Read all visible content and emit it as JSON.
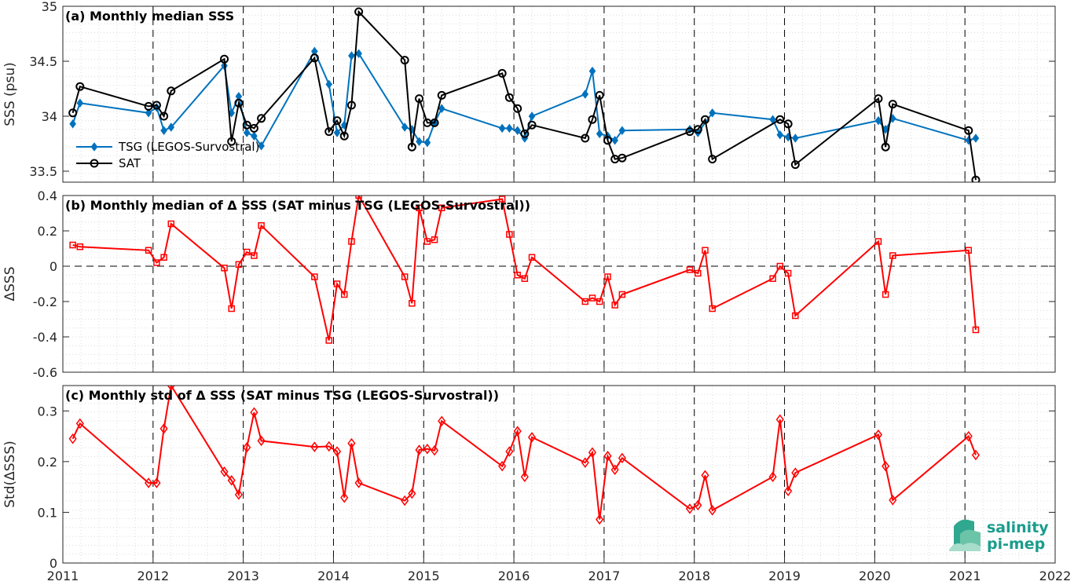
{
  "chart_data": [
    {
      "type": "line",
      "title": "(a) Monthly median SSS",
      "ylabel": "SSS (psu)",
      "xlim": [
        2011,
        2022
      ],
      "ylim": [
        33.4,
        35
      ],
      "yticks": [
        "33.5",
        "34",
        "34.5",
        "35"
      ],
      "yticks_values": [
        33.5,
        34,
        34.5,
        35
      ],
      "legend_position": "middle-left",
      "grid": "dotted minor",
      "series": [
        {
          "name": "TSG (LEGOS-Survostral)",
          "color": "#0072bd",
          "marker": "diamond",
          "x": [
            2011.11,
            2011.19,
            2011.95,
            2012.04,
            2012.12,
            2012.2,
            2012.79,
            2012.87,
            2012.95,
            2013.04,
            2013.12,
            2013.2,
            2013.79,
            2013.95,
            2014.04,
            2014.12,
            2014.2,
            2014.28,
            2014.79,
            2014.87,
            2014.95,
            2015.04,
            2015.12,
            2015.2,
            2015.87,
            2015.95,
            2016.04,
            2016.12,
            2016.2,
            2016.79,
            2016.87,
            2016.95,
            2017.04,
            2017.12,
            2017.2,
            2017.95,
            2018.04,
            2018.2,
            2018.87,
            2018.95,
            2019.04,
            2019.12,
            2020.04,
            2020.12,
            2020.2,
            2021.04,
            2021.12
          ],
          "y": [
            33.93,
            34.12,
            34.03,
            34.08,
            33.87,
            33.9,
            34.46,
            34.03,
            34.18,
            33.85,
            33.82,
            33.73,
            34.59,
            34.29,
            33.85,
            33.92,
            34.55,
            34.57,
            33.9,
            33.88,
            33.77,
            33.76,
            33.94,
            34.07,
            33.89,
            33.89,
            33.87,
            33.8,
            34.0,
            34.2,
            34.41,
            33.84,
            33.82,
            33.78,
            33.87,
            33.88,
            33.85,
            34.03,
            33.97,
            33.83,
            33.81,
            33.8,
            33.96,
            33.88,
            33.98,
            33.78,
            33.8
          ]
        },
        {
          "name": "SAT",
          "color": "#000000",
          "marker": "circle",
          "x": [
            2011.11,
            2011.19,
            2011.95,
            2012.04,
            2012.12,
            2012.2,
            2012.79,
            2012.87,
            2012.95,
            2013.04,
            2013.12,
            2013.2,
            2013.79,
            2013.95,
            2014.04,
            2014.12,
            2014.2,
            2014.28,
            2014.79,
            2014.87,
            2014.95,
            2015.04,
            2015.12,
            2015.2,
            2015.87,
            2015.95,
            2016.04,
            2016.12,
            2016.2,
            2016.79,
            2016.87,
            2016.95,
            2017.04,
            2017.12,
            2017.2,
            2017.95,
            2018.04,
            2018.12,
            2018.2,
            2018.95,
            2019.04,
            2019.12,
            2020.04,
            2020.12,
            2020.2,
            2021.04,
            2021.12
          ],
          "y": [
            34.03,
            34.27,
            34.09,
            34.1,
            34.0,
            34.23,
            34.52,
            33.77,
            34.12,
            33.92,
            33.89,
            33.98,
            34.53,
            33.86,
            33.96,
            33.82,
            34.1,
            34.95,
            34.51,
            33.72,
            34.16,
            33.94,
            33.94,
            34.19,
            34.39,
            34.17,
            34.07,
            33.84,
            33.92,
            33.8,
            33.97,
            34.19,
            33.78,
            33.61,
            33.62,
            33.86,
            33.88,
            33.97,
            33.61,
            33.97,
            33.93,
            33.56,
            34.16,
            33.72,
            34.11,
            33.87,
            33.42
          ]
        }
      ]
    },
    {
      "type": "line",
      "title": "(b) Monthly median of Δ SSS (SAT minus TSG (LEGOS-Survostral))",
      "ylabel": "ΔSSS",
      "xlim": [
        2011,
        2022
      ],
      "ylim": [
        -0.6,
        0.4
      ],
      "yticks": [
        "-0.6",
        "-0.4",
        "-0.2",
        "0",
        "0.2",
        "0.4"
      ],
      "yticks_values": [
        -0.6,
        -0.4,
        -0.2,
        0,
        0.2,
        0.4
      ],
      "zero_line": true,
      "grid": "dotted minor",
      "series": [
        {
          "color": "#ff0000",
          "marker": "square",
          "x": [
            2011.11,
            2011.19,
            2011.95,
            2012.04,
            2012.12,
            2012.2,
            2012.79,
            2012.87,
            2012.95,
            2013.04,
            2013.12,
            2013.2,
            2013.79,
            2013.95,
            2014.04,
            2014.12,
            2014.2,
            2014.28,
            2014.79,
            2014.87,
            2014.95,
            2015.04,
            2015.12,
            2015.2,
            2015.87,
            2015.95,
            2016.04,
            2016.12,
            2016.2,
            2016.79,
            2016.87,
            2016.95,
            2017.04,
            2017.12,
            2017.2,
            2017.95,
            2018.04,
            2018.12,
            2018.2,
            2018.87,
            2018.95,
            2019.04,
            2019.12,
            2020.04,
            2020.12,
            2020.2,
            2021.04,
            2021.12
          ],
          "y": [
            0.12,
            0.11,
            0.09,
            0.02,
            0.05,
            0.24,
            -0.01,
            -0.24,
            0.01,
            0.08,
            0.06,
            0.23,
            -0.06,
            -0.42,
            -0.1,
            -0.16,
            0.14,
            0.4,
            -0.06,
            -0.21,
            0.33,
            0.14,
            0.15,
            0.33,
            0.38,
            0.18,
            -0.05,
            -0.07,
            0.05,
            -0.2,
            -0.18,
            -0.2,
            -0.06,
            -0.22,
            -0.16,
            -0.02,
            -0.04,
            0.09,
            -0.24,
            -0.07,
            0.0,
            -0.04,
            -0.28,
            0.14,
            -0.16,
            0.06,
            0.09,
            -0.36
          ]
        }
      ]
    },
    {
      "type": "line",
      "title": "(c) Monthly std of Δ SSS (SAT minus TSG (LEGOS-Survostral))",
      "ylabel": "Std(ΔSSS)",
      "xlabel": "",
      "xlim": [
        2011,
        2022
      ],
      "ylim": [
        0,
        0.35
      ],
      "xticks": [
        "2011",
        "2012",
        "2013",
        "2014",
        "2015",
        "2016",
        "2017",
        "2018",
        "2019",
        "2020",
        "2021",
        "2022"
      ],
      "yticks": [
        "0",
        "0.1",
        "0.2",
        "0.3"
      ],
      "yticks_values": [
        0,
        0.1,
        0.2,
        0.3
      ],
      "grid": "dotted minor",
      "series": [
        {
          "color": "#ff0000",
          "marker": "diamond",
          "x": [
            2011.11,
            2011.19,
            2011.95,
            2012.04,
            2012.12,
            2012.2,
            2012.79,
            2012.87,
            2012.95,
            2013.04,
            2013.12,
            2013.2,
            2013.79,
            2013.95,
            2014.04,
            2014.12,
            2014.2,
            2014.28,
            2014.79,
            2014.87,
            2014.95,
            2015.04,
            2015.12,
            2015.2,
            2015.87,
            2015.95,
            2016.04,
            2016.12,
            2016.2,
            2016.79,
            2016.87,
            2016.95,
            2017.04,
            2017.12,
            2017.2,
            2017.95,
            2018.04,
            2018.12,
            2018.2,
            2018.87,
            2018.95,
            2019.04,
            2019.12,
            2020.04,
            2020.12,
            2020.2,
            2021.04,
            2021.12
          ],
          "y": [
            0.245,
            0.275,
            0.158,
            0.158,
            0.265,
            0.35,
            0.18,
            0.163,
            0.135,
            0.228,
            0.297,
            0.241,
            0.229,
            0.23,
            0.22,
            0.129,
            0.236,
            0.158,
            0.123,
            0.137,
            0.223,
            0.225,
            0.222,
            0.28,
            0.191,
            0.22,
            0.26,
            0.17,
            0.248,
            0.198,
            0.218,
            0.086,
            0.211,
            0.184,
            0.207,
            0.107,
            0.114,
            0.173,
            0.104,
            0.17,
            0.283,
            0.142,
            0.178,
            0.253,
            0.191,
            0.124,
            0.25,
            0.213
          ]
        }
      ]
    }
  ],
  "logo": {
    "line1": "salinity",
    "line2": "pi-mep"
  }
}
